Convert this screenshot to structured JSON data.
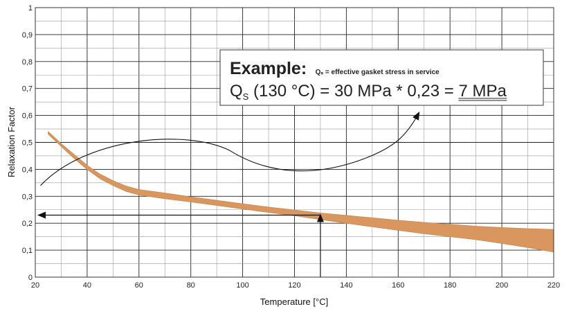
{
  "chart_data": {
    "type": "area",
    "title": "",
    "xlabel": "Temperature [°C]",
    "ylabel": "Relaxation Factor",
    "xlim": [
      20,
      220
    ],
    "ylim": [
      0,
      1
    ],
    "x_ticks": [
      "20",
      "40",
      "60",
      "80",
      "100",
      "120",
      "140",
      "160",
      "180",
      "200",
      "220"
    ],
    "y_ticks": [
      "0",
      "0,1",
      "0,2",
      "0,3",
      "0,4",
      "0,5",
      "0,6",
      "0,7",
      "0,8",
      "0,9",
      "1"
    ],
    "grid": true,
    "band": {
      "color": "#d9965e",
      "x": [
        25,
        30,
        35,
        40,
        45,
        50,
        55,
        60,
        70,
        80,
        90,
        100,
        110,
        120,
        130,
        140,
        150,
        160,
        170,
        180,
        190,
        200,
        210,
        220
      ],
      "upper": [
        0.54,
        0.495,
        0.455,
        0.415,
        0.382,
        0.358,
        0.338,
        0.325,
        0.312,
        0.298,
        0.285,
        0.272,
        0.26,
        0.249,
        0.238,
        0.229,
        0.22,
        0.211,
        0.203,
        0.196,
        0.189,
        0.184,
        0.18,
        0.177
      ],
      "lower": [
        0.53,
        0.485,
        0.44,
        0.4,
        0.365,
        0.34,
        0.318,
        0.305,
        0.291,
        0.279,
        0.266,
        0.253,
        0.24,
        0.228,
        0.214,
        0.2,
        0.187,
        0.174,
        0.161,
        0.15,
        0.139,
        0.125,
        0.11,
        0.093
      ]
    },
    "reading": {
      "temperature": 130,
      "factor": 0.23
    },
    "annotation": {
      "heading": "Example:",
      "subnote": "Qₛ = effective gasket stress in service",
      "formula_prefix": "Q",
      "formula_sub": "S",
      "formula_rest": " (130 °C) = 30 MPa * 0,23 = ",
      "result": "7 MPa"
    }
  }
}
